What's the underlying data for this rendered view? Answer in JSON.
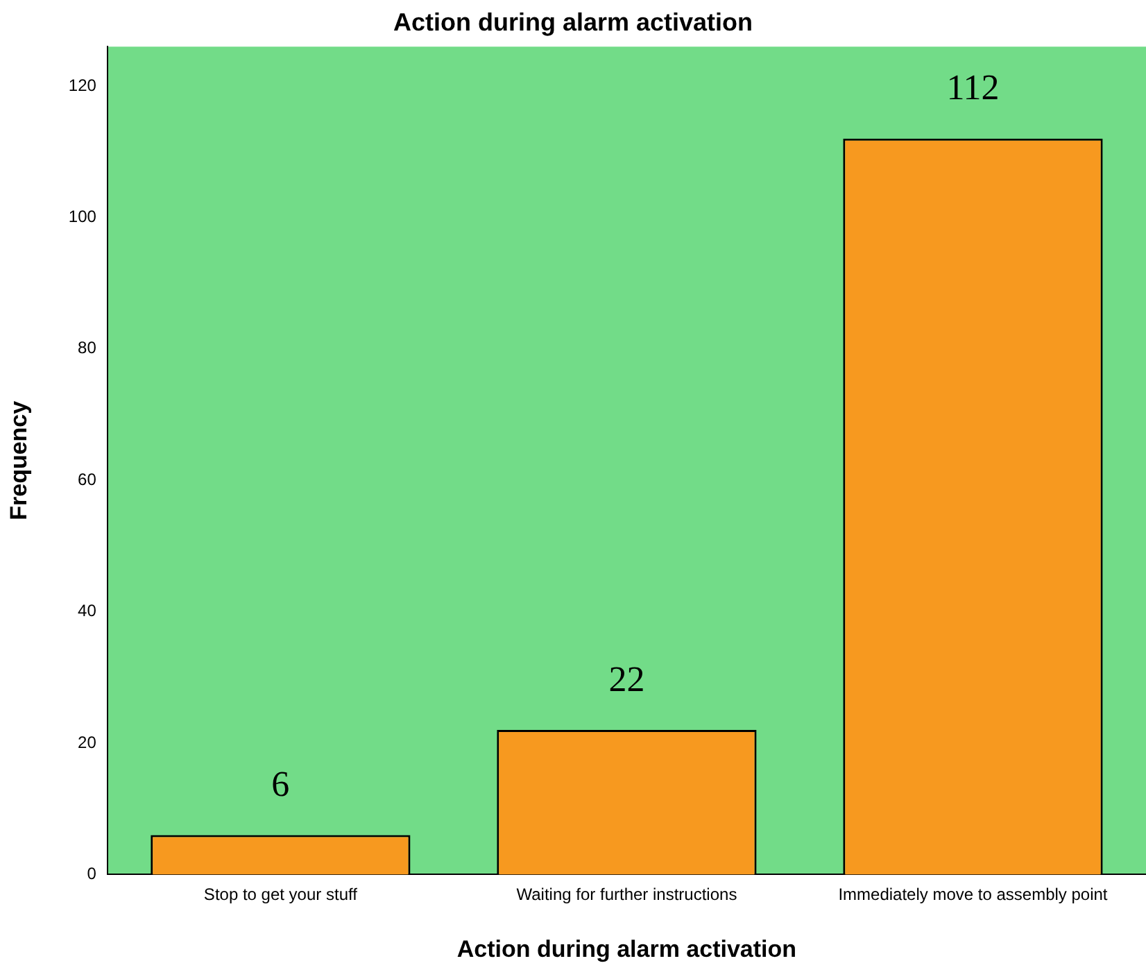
{
  "chart_data": {
    "type": "bar",
    "title": "Action during alarm activation",
    "xlabel": "Action during alarm activation",
    "ylabel": "Frequency",
    "categories": [
      "Stop to get your stuff",
      "Waiting for further instructions",
      "Immediately move to assembly point"
    ],
    "values": [
      6,
      22,
      112
    ],
    "color": "#f7991f",
    "ylim": [
      0,
      126
    ],
    "yticks": [
      0,
      20,
      40,
      60,
      80,
      100,
      120
    ],
    "grid": false,
    "legend": false,
    "data_labels": true
  }
}
